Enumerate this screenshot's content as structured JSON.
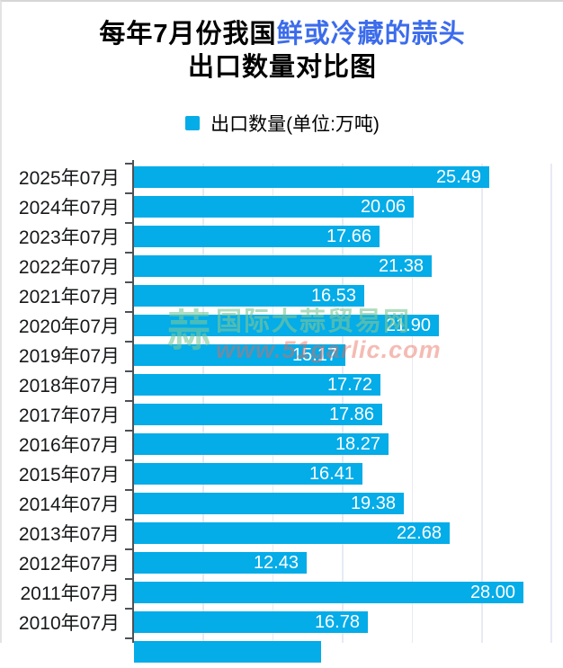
{
  "title": {
    "prefix": "每年7月份我国",
    "highlight": "鲜或冷藏的蒜头",
    "line2": "出口数量对比图",
    "highlight_color": "#3c6cec"
  },
  "legend": {
    "label": "出口数量(单位:万吨)",
    "swatch_color": "#04ace8"
  },
  "watermark": {
    "logo_glyph": "蒜",
    "site_name": "国际大蒜贸易网",
    "site_url": "www.51garlic.com"
  },
  "chart_data": {
    "type": "bar",
    "orientation": "horizontal",
    "title": "每年7月份我国鲜或冷藏的蒜头出口数量对比图",
    "series_name": "出口数量",
    "unit": "万吨",
    "categories": [
      "2025年07月",
      "2024年07月",
      "2023年07月",
      "2022年07月",
      "2021年07月",
      "2020年07月",
      "2019年07月",
      "2018年07月",
      "2017年07月",
      "2016年07月",
      "2015年07月",
      "2014年07月",
      "2013年07月",
      "2012年07月",
      "2011年07月",
      "2010年07月"
    ],
    "values": [
      25.49,
      20.06,
      17.66,
      21.38,
      16.53,
      21.9,
      15.17,
      17.72,
      17.86,
      18.27,
      16.41,
      19.38,
      22.68,
      12.43,
      28.0,
      16.78
    ],
    "value_labels": [
      "25.49",
      "20.06",
      "17.66",
      "21.38",
      "16.53",
      "21.90",
      "15.17",
      "17.72",
      "17.86",
      "18.27",
      "16.41",
      "19.38",
      "22.68",
      "12.43",
      "28.00",
      "16.78"
    ],
    "xlim": [
      0,
      31
    ],
    "gridline_values": [
      5,
      10,
      15,
      20,
      25,
      30
    ],
    "grid": "vertical-only",
    "legend_position": "top-center",
    "bar_color": "#04ace8",
    "value_label_color": "#ffffff",
    "partial_bottom_bar_value_estimate": 13.44
  }
}
